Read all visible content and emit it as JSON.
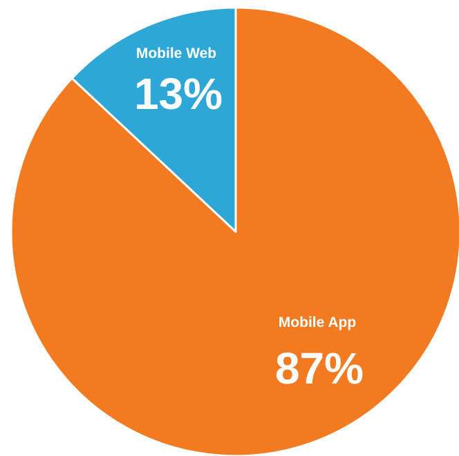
{
  "chart_data": {
    "type": "pie",
    "slices": [
      {
        "label": "Mobile Web",
        "value": 13,
        "display": "13%",
        "color": "#2ea6d6"
      },
      {
        "label": "Mobile App",
        "value": 87,
        "display": "87%",
        "color": "#f27b21"
      }
    ]
  }
}
